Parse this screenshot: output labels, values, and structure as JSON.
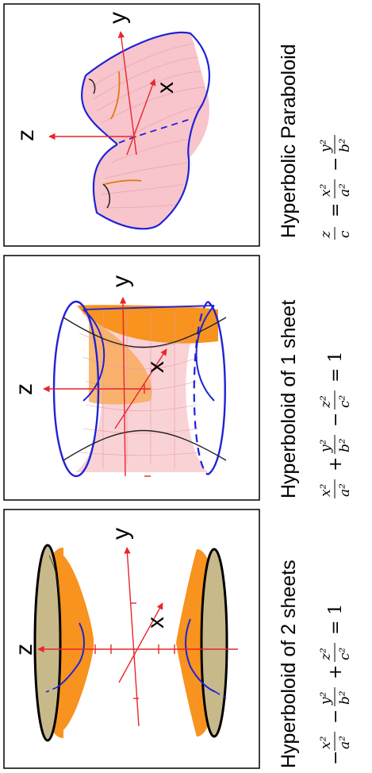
{
  "colors": {
    "axis": "#e8262b",
    "outline": "#1f23d6",
    "fill_orange": "#f7931e",
    "mesh_pink": "#f4b6bd",
    "frame": "#000000"
  },
  "panels": [
    {
      "title": "Hyperbolic Paraboloid",
      "equation": {
        "lhs_num": "z",
        "lhs_den": "c",
        "eq": "=",
        "t1_num": "x²",
        "t1_den": "a²",
        "op": "−",
        "t2_num": "y²",
        "t2_den": "b²"
      },
      "axes": {
        "z": "z",
        "y": "y",
        "x": "x"
      }
    },
    {
      "title": "Hyperboloid of 1 sheet",
      "equation": {
        "t1_num": "x²",
        "t1_den": "a²",
        "op1": "+",
        "t2_num": "y²",
        "t2_den": "b²",
        "op2": "−",
        "t3_num": "z²",
        "t3_den": "c²",
        "eq": "= 1"
      },
      "axes": {
        "z": "z",
        "y": "y",
        "x": "x"
      }
    },
    {
      "title": "Hyperboloid of 2 sheets",
      "equation": {
        "sign": "−",
        "t1_num": "x²",
        "t1_den": "a²",
        "op1": "−",
        "t2_num": "y²",
        "t2_den": "b²",
        "op2": "+",
        "t3_num": "z²",
        "t3_den": "c²",
        "eq": "= 1"
      },
      "axes": {
        "z": "z",
        "y": "y",
        "x": "x"
      }
    }
  ]
}
